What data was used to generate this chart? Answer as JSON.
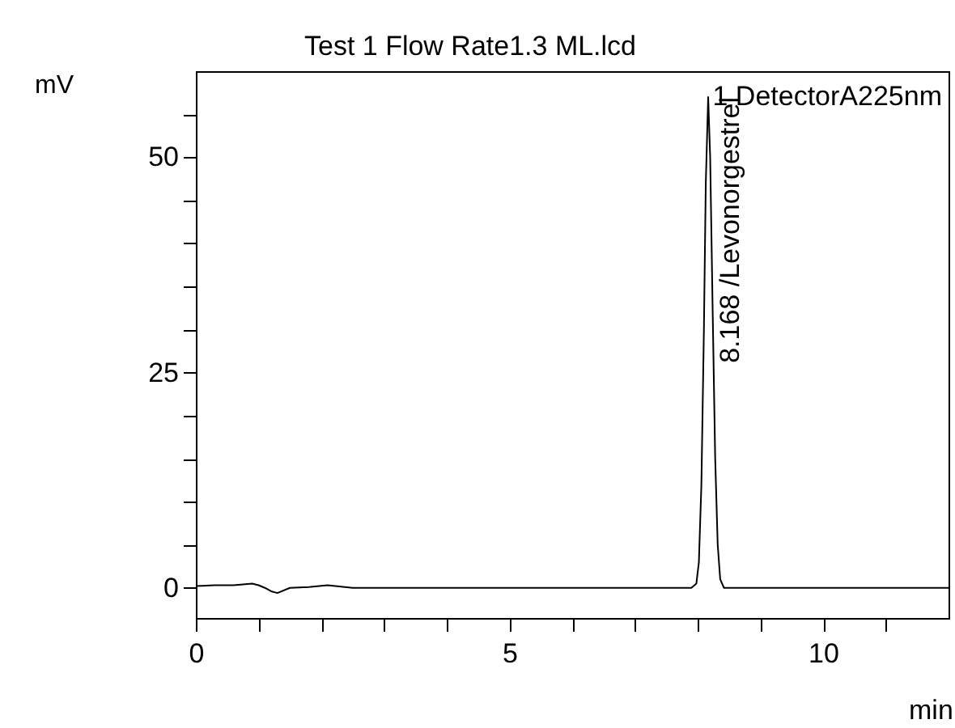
{
  "chart_data": {
    "type": "line",
    "title": "Test 1 Flow Rate1.3 ML.lcd",
    "xlabel": "min",
    "ylabel": "mV",
    "annotations": [
      "1 DetectorA225nm",
      {
        "text": "8.168 /Levonorgestrel",
        "x": 8.168,
        "y": 57
      }
    ],
    "x": [
      0,
      0.3,
      0.6,
      0.9,
      1.0,
      1.1,
      1.2,
      1.3,
      1.5,
      1.8,
      2.1,
      2.5,
      3,
      4,
      5,
      6,
      7,
      7.9,
      7.98,
      8.02,
      8.06,
      8.1,
      8.13,
      8.168,
      8.2,
      8.24,
      8.28,
      8.32,
      8.36,
      8.42,
      8.5,
      9,
      10,
      11,
      12
    ],
    "series": [
      {
        "color": "#000000",
        "values": [
          0.2,
          0.3,
          0.3,
          0.5,
          0.3,
          0,
          -0.4,
          -0.6,
          0,
          0.1,
          0.3,
          0,
          0,
          0,
          0,
          0,
          0,
          0,
          0.5,
          3,
          12,
          30,
          47,
          57,
          50,
          32,
          15,
          5,
          1,
          0,
          0,
          0,
          0,
          0,
          0
        ]
      }
    ],
    "xlim": [
      0,
      12
    ],
    "ylim": [
      -3.5,
      60
    ],
    "xticks": [
      0,
      {
        "value": 1,
        "label": null
      },
      {
        "value": 2,
        "label": null
      },
      {
        "value": 3,
        "label": null
      },
      {
        "value": 4,
        "label": null
      },
      5,
      {
        "value": 6,
        "label": null
      },
      {
        "value": 7,
        "label": null
      },
      {
        "value": 8,
        "label": null
      },
      {
        "value": 9,
        "label": null
      },
      10,
      {
        "value": 11,
        "label": null
      }
    ],
    "yticks": [
      0,
      {
        "value": 5,
        "label": null
      },
      {
        "value": 10,
        "label": null
      },
      {
        "value": 15,
        "label": null
      },
      {
        "value": 20,
        "label": null
      },
      25,
      {
        "value": 30,
        "label": null
      },
      {
        "value": 35,
        "label": null
      },
      {
        "value": 40,
        "label": null
      },
      {
        "value": 45,
        "label": null
      },
      50,
      {
        "value": 55,
        "label": null
      }
    ],
    "grid": false,
    "legend": false,
    "marker": "none",
    "line_style": "solid"
  }
}
